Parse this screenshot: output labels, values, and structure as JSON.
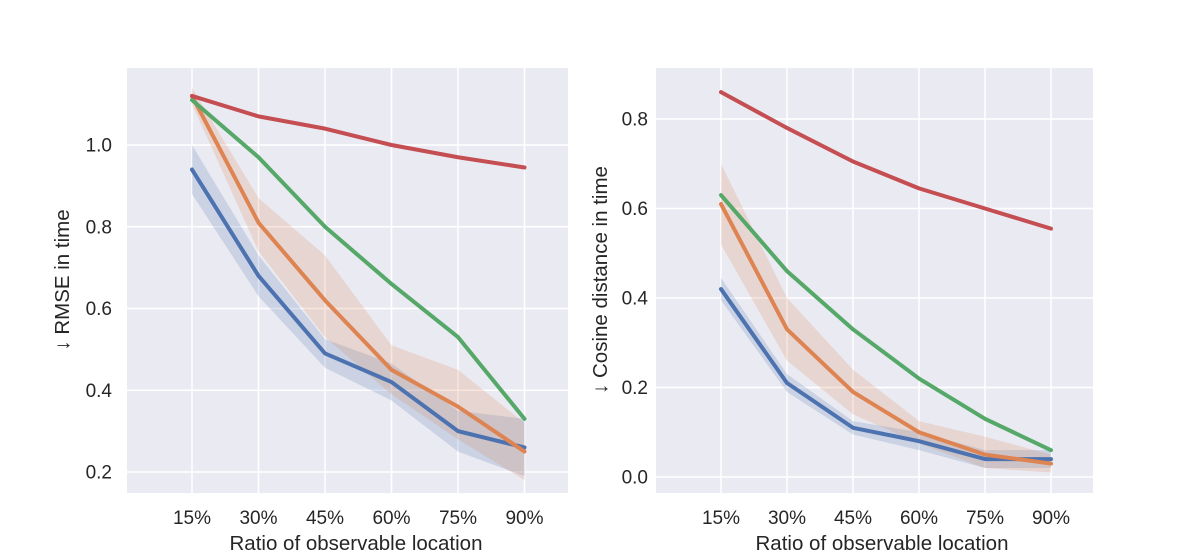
{
  "figure": {
    "background": "#ffffff",
    "plot_background": "#eaeaf2",
    "grid_color": "#ffffff",
    "text_color": "#262626"
  },
  "palette": {
    "blue": "#4c72b0",
    "orange": "#dd8452",
    "green": "#55a868",
    "red": "#c44e52"
  },
  "chart_data": [
    {
      "type": "line",
      "title": "",
      "xlabel": "Ratio of observable location",
      "ylabel": "↓ RMSE in time",
      "categories": [
        "15%",
        "30%",
        "45%",
        "60%",
        "75%",
        "90%"
      ],
      "y_ticks": [
        0.2,
        0.4,
        0.6,
        0.8,
        1.0
      ],
      "y_tick_labels": [
        "0.2",
        "0.4",
        "0.6",
        "0.8",
        "1.0"
      ],
      "ylim": [
        0.15,
        1.19
      ],
      "grid": true,
      "legend": "none",
      "series": [
        {
          "name": "blue",
          "color_key": "blue",
          "values": [
            0.94,
            0.68,
            0.49,
            0.42,
            0.3,
            0.26
          ],
          "band_low": [
            0.88,
            0.63,
            0.455,
            0.375,
            0.25,
            0.19
          ],
          "band_high": [
            1.0,
            0.73,
            0.525,
            0.465,
            0.35,
            0.33
          ]
        },
        {
          "name": "orange",
          "color_key": "orange",
          "values": [
            1.12,
            0.81,
            0.62,
            0.45,
            0.36,
            0.25
          ],
          "band_low": [
            1.1,
            0.74,
            0.53,
            0.39,
            0.28,
            0.18
          ],
          "band_high": [
            1.14,
            0.87,
            0.73,
            0.51,
            0.45,
            0.32
          ]
        },
        {
          "name": "green",
          "color_key": "green",
          "values": [
            1.11,
            0.97,
            0.8,
            0.66,
            0.53,
            0.33
          ]
        },
        {
          "name": "red",
          "color_key": "red",
          "values": [
            1.12,
            1.07,
            1.04,
            1.0,
            0.97,
            0.945
          ]
        }
      ]
    },
    {
      "type": "line",
      "title": "",
      "xlabel": "Ratio of observable location",
      "ylabel": "↓ Cosine distance in time",
      "categories": [
        "15%",
        "30%",
        "45%",
        "60%",
        "75%",
        "90%"
      ],
      "y_ticks": [
        0.0,
        0.2,
        0.4,
        0.6,
        0.8
      ],
      "y_tick_labels": [
        "0.0",
        "0.2",
        "0.4",
        "0.6",
        "0.8"
      ],
      "ylim": [
        -0.03,
        0.92
      ],
      "grid": true,
      "legend": "none",
      "series": [
        {
          "name": "blue",
          "color_key": "blue",
          "values": [
            0.42,
            0.21,
            0.11,
            0.08,
            0.04,
            0.04
          ],
          "band_low": [
            0.395,
            0.19,
            0.095,
            0.06,
            0.02,
            0.02
          ],
          "band_high": [
            0.445,
            0.23,
            0.125,
            0.1,
            0.06,
            0.06
          ]
        },
        {
          "name": "orange",
          "color_key": "orange",
          "values": [
            0.61,
            0.33,
            0.19,
            0.1,
            0.05,
            0.03
          ],
          "band_low": [
            0.52,
            0.26,
            0.14,
            0.075,
            0.02,
            0.01
          ],
          "band_high": [
            0.7,
            0.4,
            0.24,
            0.125,
            0.09,
            0.05
          ]
        },
        {
          "name": "green",
          "color_key": "green",
          "values": [
            0.63,
            0.46,
            0.33,
            0.22,
            0.13,
            0.06
          ]
        },
        {
          "name": "red",
          "color_key": "red",
          "values": [
            0.86,
            0.78,
            0.705,
            0.645,
            0.6,
            0.555
          ]
        }
      ]
    }
  ]
}
